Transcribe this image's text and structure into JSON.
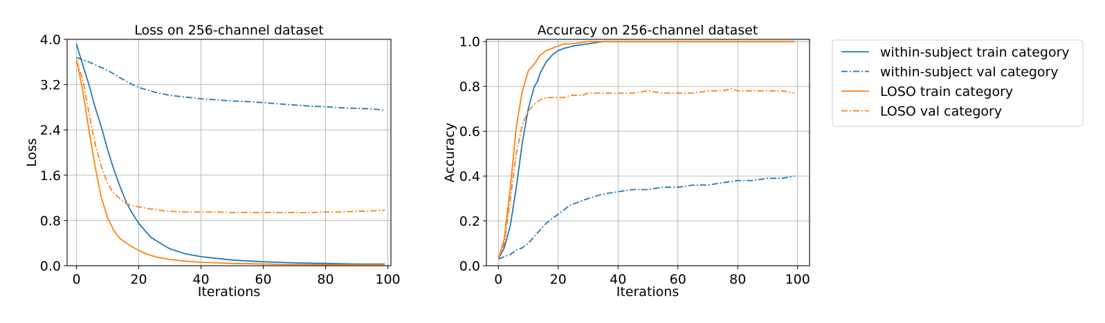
{
  "chart_data": [
    {
      "type": "line",
      "title": "Loss on 256-channel dataset",
      "xlabel": "Iterations",
      "ylabel": "Loss",
      "xlim": [
        -3,
        101
      ],
      "ylim": [
        0,
        4.0
      ],
      "xticks": [
        0,
        20,
        40,
        60,
        80,
        100
      ],
      "yticks": [
        0.0,
        0.8,
        1.6,
        2.4,
        3.2,
        4.0
      ],
      "xtick_labels": [
        "0",
        "20",
        "40",
        "60",
        "80",
        "100"
      ],
      "ytick_labels": [
        "0.0",
        "0.8",
        "1.6",
        "2.4",
        "3.2",
        "4.0"
      ],
      "grid": true,
      "series": [
        {
          "name": "within-subject train category",
          "color": "#1f77b4",
          "style": "solid",
          "x": [
            0,
            2,
            4,
            6,
            8,
            10,
            12,
            14,
            16,
            18,
            20,
            22,
            24,
            26,
            28,
            30,
            35,
            40,
            45,
            50,
            60,
            70,
            80,
            90,
            99
          ],
          "y": [
            3.92,
            3.55,
            3.2,
            2.8,
            2.45,
            2.05,
            1.7,
            1.4,
            1.12,
            0.92,
            0.75,
            0.62,
            0.5,
            0.43,
            0.36,
            0.3,
            0.21,
            0.16,
            0.13,
            0.1,
            0.07,
            0.05,
            0.04,
            0.03,
            0.03
          ]
        },
        {
          "name": "within-subject val category",
          "color": "#1f77b4",
          "style": "dashdot",
          "x": [
            0,
            2,
            4,
            6,
            8,
            10,
            12,
            14,
            16,
            18,
            20,
            25,
            30,
            35,
            40,
            45,
            50,
            55,
            60,
            65,
            70,
            75,
            80,
            85,
            90,
            95,
            99
          ],
          "y": [
            3.68,
            3.64,
            3.6,
            3.55,
            3.5,
            3.45,
            3.39,
            3.32,
            3.26,
            3.2,
            3.15,
            3.07,
            3.01,
            2.98,
            2.95,
            2.93,
            2.91,
            2.9,
            2.88,
            2.86,
            2.84,
            2.82,
            2.81,
            2.79,
            2.78,
            2.77,
            2.75
          ]
        },
        {
          "name": "LOSO train category",
          "color": "#ff7f0e",
          "style": "solid",
          "x": [
            0,
            2,
            4,
            6,
            8,
            10,
            12,
            14,
            16,
            18,
            20,
            22,
            24,
            26,
            28,
            30,
            35,
            40,
            45,
            50,
            60,
            70,
            80,
            90,
            99
          ],
          "y": [
            3.65,
            3.1,
            2.4,
            1.75,
            1.2,
            0.85,
            0.62,
            0.48,
            0.4,
            0.33,
            0.27,
            0.22,
            0.18,
            0.15,
            0.13,
            0.11,
            0.08,
            0.06,
            0.05,
            0.04,
            0.03,
            0.02,
            0.02,
            0.02,
            0.02
          ]
        },
        {
          "name": "LOSO val category",
          "color": "#ff7f0e",
          "style": "dashdot",
          "x": [
            0,
            2,
            4,
            6,
            8,
            10,
            12,
            14,
            16,
            18,
            20,
            22,
            24,
            26,
            28,
            30,
            35,
            40,
            45,
            50,
            55,
            60,
            65,
            70,
            75,
            80,
            85,
            90,
            95,
            99
          ],
          "y": [
            3.62,
            3.3,
            2.7,
            2.15,
            1.75,
            1.45,
            1.28,
            1.18,
            1.1,
            1.06,
            1.04,
            1.02,
            1.0,
            0.99,
            0.97,
            0.96,
            0.95,
            0.95,
            0.95,
            0.94,
            0.94,
            0.94,
            0.94,
            0.94,
            0.94,
            0.95,
            0.95,
            0.96,
            0.97,
            0.98
          ]
        }
      ]
    },
    {
      "type": "line",
      "title": "Accuracy on 256-channel dataset",
      "xlabel": "Iterations",
      "ylabel": "Accuracy",
      "xlim": [
        -4,
        104
      ],
      "ylim": [
        0,
        1.01
      ],
      "xticks": [
        0,
        20,
        40,
        60,
        80,
        100
      ],
      "yticks": [
        0.0,
        0.2,
        0.4,
        0.6,
        0.8,
        1.0
      ],
      "xtick_labels": [
        "0",
        "20",
        "40",
        "60",
        "80",
        "100"
      ],
      "ytick_labels": [
        "0.0",
        "0.2",
        "0.4",
        "0.6",
        "0.8",
        "1.0"
      ],
      "grid": true,
      "series": [
        {
          "name": "within-subject train category",
          "color": "#1f77b4",
          "style": "solid",
          "x": [
            0,
            2,
            4,
            6,
            8,
            10,
            12,
            13,
            14,
            16,
            18,
            20,
            22,
            25,
            30,
            35,
            40,
            50,
            60,
            70,
            80,
            90,
            99
          ],
          "y": [
            0.03,
            0.08,
            0.18,
            0.35,
            0.55,
            0.7,
            0.8,
            0.82,
            0.86,
            0.91,
            0.94,
            0.96,
            0.97,
            0.98,
            0.99,
            1.0,
            1.0,
            1.0,
            1.0,
            1.0,
            1.0,
            1.0,
            1.0
          ]
        },
        {
          "name": "within-subject val category",
          "color": "#1f77b4",
          "style": "dashdot",
          "x": [
            0,
            2,
            4,
            6,
            8,
            10,
            12,
            14,
            16,
            18,
            20,
            22,
            24,
            26,
            28,
            30,
            35,
            40,
            45,
            50,
            55,
            60,
            65,
            70,
            75,
            80,
            85,
            90,
            95,
            99
          ],
          "y": [
            0.03,
            0.04,
            0.05,
            0.07,
            0.08,
            0.1,
            0.13,
            0.16,
            0.19,
            0.21,
            0.23,
            0.25,
            0.27,
            0.28,
            0.29,
            0.3,
            0.32,
            0.33,
            0.34,
            0.34,
            0.35,
            0.35,
            0.36,
            0.36,
            0.37,
            0.38,
            0.38,
            0.39,
            0.39,
            0.4
          ]
        },
        {
          "name": "LOSO train category",
          "color": "#ff7f0e",
          "style": "solid",
          "x": [
            0,
            2,
            4,
            6,
            8,
            10,
            12,
            14,
            16,
            18,
            20,
            22,
            25,
            30,
            35,
            40,
            50,
            60,
            70,
            80,
            90,
            99
          ],
          "y": [
            0.03,
            0.12,
            0.35,
            0.62,
            0.78,
            0.87,
            0.9,
            0.94,
            0.96,
            0.97,
            0.98,
            0.99,
            0.99,
            1.0,
            1.0,
            1.0,
            1.0,
            1.0,
            1.0,
            1.0,
            1.0,
            1.0
          ]
        },
        {
          "name": "LOSO val category",
          "color": "#ff7f0e",
          "style": "dashdot",
          "x": [
            0,
            2,
            4,
            6,
            8,
            10,
            12,
            14,
            16,
            18,
            20,
            22,
            24,
            26,
            28,
            30,
            35,
            40,
            45,
            50,
            55,
            60,
            65,
            70,
            75,
            78,
            80,
            85,
            90,
            95,
            99
          ],
          "y": [
            0.03,
            0.1,
            0.3,
            0.5,
            0.63,
            0.69,
            0.72,
            0.74,
            0.75,
            0.75,
            0.75,
            0.75,
            0.76,
            0.76,
            0.76,
            0.77,
            0.77,
            0.77,
            0.77,
            0.78,
            0.77,
            0.77,
            0.77,
            0.78,
            0.78,
            0.79,
            0.78,
            0.78,
            0.78,
            0.78,
            0.77
          ]
        }
      ]
    }
  ],
  "legend": {
    "placement": "right, outside plots",
    "entries": [
      {
        "label": "within-subject train category",
        "color": "#1f77b4",
        "style": "solid"
      },
      {
        "label": "within-subject val category",
        "color": "#1f77b4",
        "style": "dashdot"
      },
      {
        "label": "LOSO train category",
        "color": "#ff7f0e",
        "style": "solid"
      },
      {
        "label": "LOSO val category",
        "color": "#ff7f0e",
        "style": "dashdot"
      }
    ]
  }
}
